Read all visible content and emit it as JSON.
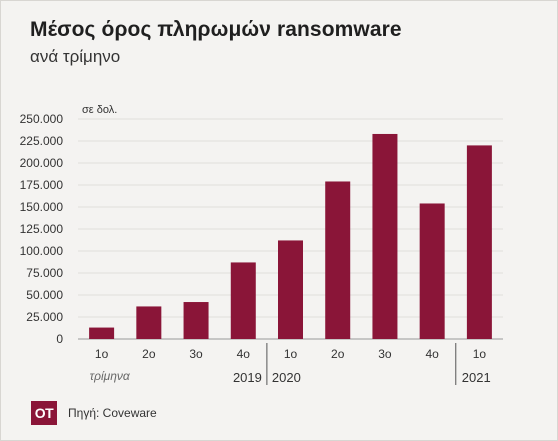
{
  "title": "Μέσος όρος πληρωμών ransomware",
  "subtitle": "ανά τρίμηνο",
  "source": "Πηγή: Coveware",
  "logo_text": "OT",
  "chart_data": {
    "type": "bar",
    "unit_label": "σε δολ.",
    "ylim": [
      0,
      250000
    ],
    "y_ticks": [
      0,
      25000,
      50000,
      75000,
      100000,
      125000,
      150000,
      175000,
      200000,
      225000,
      250000
    ],
    "y_tick_labels": [
      "0",
      "25.000",
      "50.000",
      "75.000",
      "100.000",
      "125.000",
      "150.000",
      "175.000",
      "200.000",
      "225.000",
      "250.000"
    ],
    "categories": [
      "1ο",
      "2ο",
      "3ο",
      "4ο",
      "1ο",
      "2ο",
      "3ο",
      "4ο",
      "1ο"
    ],
    "values": [
      13000,
      37000,
      42000,
      87000,
      112000,
      179000,
      233000,
      154000,
      220000
    ],
    "bar_color": "#8a1538",
    "grid": true,
    "quarter_caption": "τρίμηνα",
    "year_labels": [
      "2019",
      "2020",
      "2021"
    ]
  }
}
